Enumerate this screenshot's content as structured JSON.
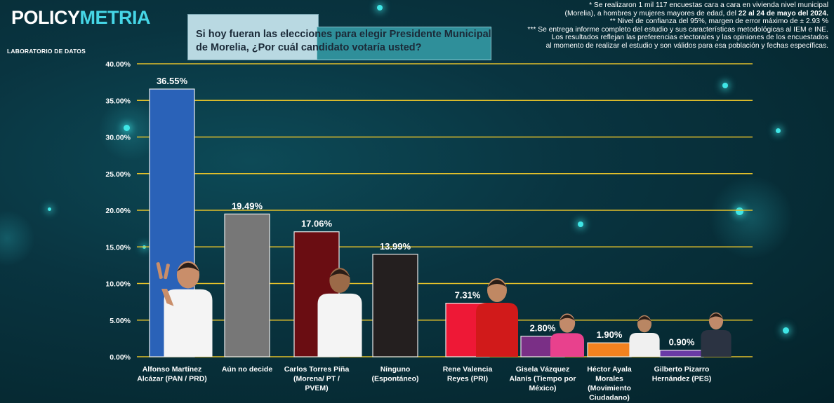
{
  "brand": {
    "part1": "POLICY",
    "part2": "METRIA",
    "subtitle": "LABORATORIO DE DATOS"
  },
  "question": "Si hoy fueran las elecciones para elegir Presidente Municipal de Morelia, ¿Por cuál candidato votaría usted?",
  "notes": {
    "line1": "* Se realizaron 1 mil 117 encuestas cara a cara en vivienda nivel municipal",
    "line2_pre": "(Morelia), a hombres y mujeres mayores de edad, del ",
    "line2_bold": "22 al 24 de mayo del 2024.",
    "line3": "** Nivel de confianza del 95%, margen de error máximo de ± 2.93 %",
    "line4": "*** Se entrega informe completo del estudio y sus características metodológicas al IEM e INE.",
    "line5": "Los resultados reflejan las preferencias electorales y las opiniones de los encuestados",
    "line6": "al momento de realizar el estudio y son válidos para esa población y fechas específicas."
  },
  "colors": {
    "gridline": "#e3c02a",
    "axis_text": "#ffffff",
    "accent": "#46d6e6"
  },
  "chart_data": {
    "type": "bar",
    "categories": [
      [
        "Alfonso Martínez",
        "Alcázar (PAN / PRD)"
      ],
      [
        "Aún no decide"
      ],
      [
        "Carlos Torres Piña",
        "(Morena/ PT /",
        "PVEM)"
      ],
      [
        "Ninguno",
        "(Espontáneo)"
      ],
      [
        "Rene Valencia",
        "Reyes (PRI)"
      ],
      [
        "Gisela Vázquez",
        "Alanís (Tiempo por",
        "México)"
      ],
      [
        "Héctor Ayala",
        "Morales",
        "(Movimiento",
        "Ciudadano)"
      ],
      [
        "Gilberto Pizarro",
        "Hernández (PES)"
      ]
    ],
    "values": [
      36.55,
      19.49,
      17.06,
      13.99,
      7.31,
      2.8,
      1.9,
      0.9
    ],
    "value_labels": [
      "36.55%",
      "19.49%",
      "17.06%",
      "13.99%",
      "7.31%",
      "2.80%",
      "1.90%",
      "0.90%"
    ],
    "bar_colors": [
      "#2a62b8",
      "#777777",
      "#6a0d12",
      "#241f1f",
      "#ee1836",
      "#7a2f86",
      "#f2821f",
      "#6a3aa6"
    ],
    "ylim": [
      0,
      40
    ],
    "yticks": [
      "0.00%",
      "5.00%",
      "10.00%",
      "15.00%",
      "20.00%",
      "25.00%",
      "30.00%",
      "35.00%",
      "40.00%"
    ],
    "grid": true,
    "candidate_photos": [
      {
        "name": "alfonso-martinez-photo",
        "shirt": "#f4f4f4",
        "skin": "#c98e6a"
      },
      {
        "name": "carlos-torres-pina-photo",
        "shirt": "#f4f4f4",
        "skin": "#9b6a48"
      },
      {
        "name": "rene-valencia-photo",
        "shirt": "#d11a1a",
        "skin": "#c08863"
      },
      {
        "name": "gisela-vazquez-photo",
        "shirt": "#e8418d",
        "skin": "#c28a6a"
      },
      {
        "name": "hector-ayala-photo",
        "shirt": "#f0f0f0",
        "skin": "#b98663"
      },
      {
        "name": "gilberto-pizarro-photo",
        "shirt": "#2b3342",
        "skin": "#c08a6a"
      }
    ]
  }
}
